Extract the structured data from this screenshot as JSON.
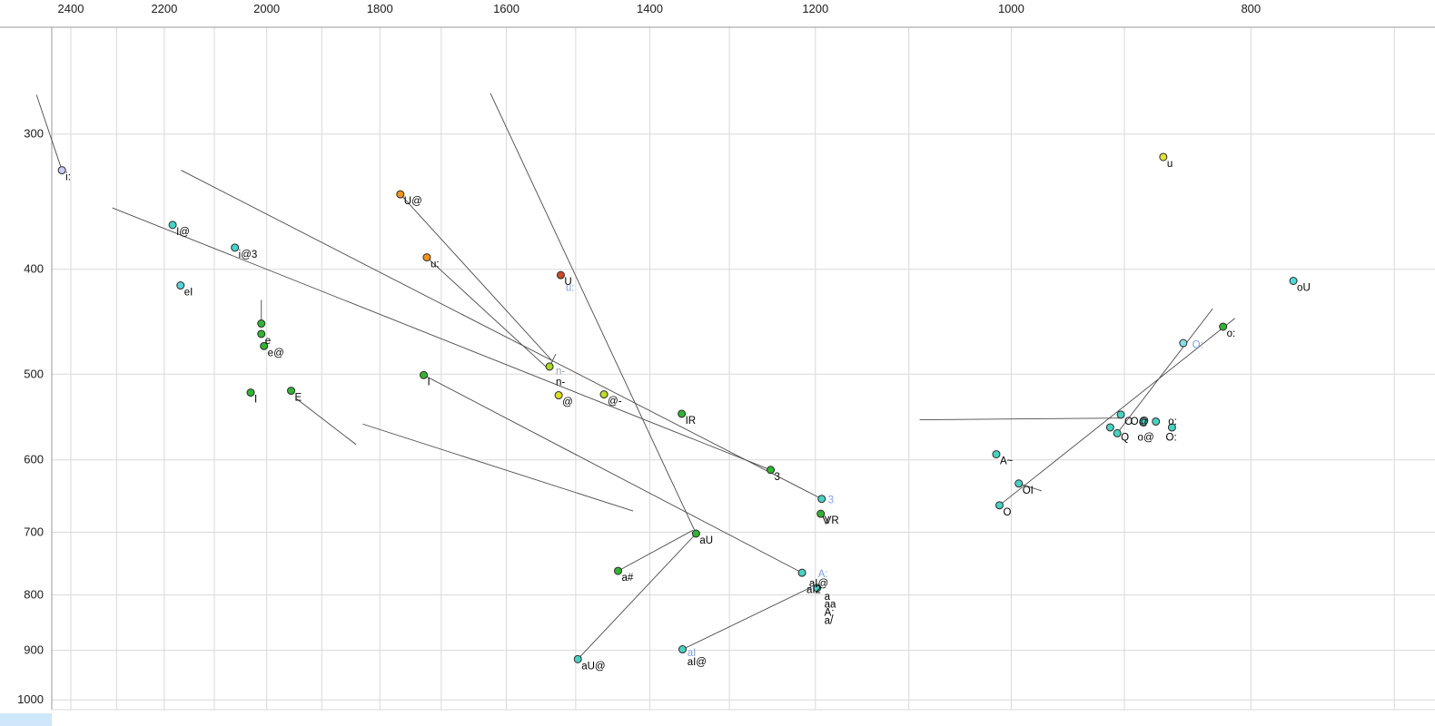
{
  "chart_data": {
    "type": "scatter",
    "title": "",
    "description": "Vowel formant plot (F2 horizontal reversed log scale, F1 vertical log scale) with diphthong trajectory lines",
    "x_ticks": [
      2400,
      2200,
      2000,
      1800,
      1600,
      1400,
      1200,
      1000,
      800
    ],
    "y_ticks": [
      300,
      400,
      500,
      600,
      700,
      800,
      900,
      1000
    ],
    "x_domain": [
      2443,
      674
    ],
    "y_domain": [
      239,
      1021
    ],
    "x_scale": "log-reversed",
    "y_scale": "log-descending",
    "grid": true,
    "grid_step": 100,
    "x_grid_range": [
      2400,
      700
    ],
    "y_grid_range": [
      300,
      1000
    ],
    "figure": {
      "background": "#ffffff",
      "grid_color": "#d9d9d9",
      "axis_color": "#9a9a9a",
      "line_color": "#4a4a4a",
      "tick_color": "#1a1a1a",
      "point_stroke": "#2a2a2a",
      "point_radius": 4
    },
    "points": [
      {
        "label": "i:",
        "f2": 2420,
        "f1": 324,
        "fill": "#c9cdf0"
      },
      {
        "label": "I@",
        "f2": 2183,
        "f1": 364,
        "fill": "#45d4c8"
      },
      {
        "label": "i@3",
        "f2": 2060,
        "f1": 382,
        "fill": "#45d4c8"
      },
      {
        "label": "eI",
        "f2": 2167,
        "f1": 414,
        "fill": "#5ad0dc"
      },
      {
        "label": "U@",
        "f2": 1766,
        "f1": 341,
        "fill": "#f2941e"
      },
      {
        "label": "u:",
        "f2": 1723,
        "f1": 390,
        "fill": "#f2941e"
      },
      {
        "label": "U",
        "f2": 1521,
        "f1": 405,
        "fill": "#cc4a2e"
      },
      {
        "label": "u",
        "f2": 868,
        "f1": 315,
        "fill": "#e2e23c"
      },
      {
        "label": "oU",
        "f2": 769,
        "f1": 410,
        "fill": "#52d8d8"
      },
      {
        "label": "o:",
        "f2": 821,
        "f1": 452,
        "fill": "#32b432"
      },
      {
        "label": "",
        "f2": 852,
        "f1": 468,
        "fill": "#8adce8"
      },
      {
        "label": "O",
        "f2": 903,
        "f1": 545,
        "fill": "#48d2c2"
      },
      {
        "label": "",
        "f2": 912,
        "f1": 560,
        "fill": "#48d2c2"
      },
      {
        "label": "",
        "f2": 906,
        "f1": 567,
        "fill": "#48d2c2"
      },
      {
        "label": "",
        "f2": 884,
        "f1": 553,
        "fill": "#48d2c2"
      },
      {
        "label": "",
        "f2": 874,
        "f1": 553,
        "fill": "#48d2c2"
      },
      {
        "label": "",
        "f2": 861,
        "f1": 560,
        "fill": "#48d2c2"
      },
      {
        "label": "A~",
        "f2": 1014,
        "f1": 593,
        "fill": "#48d2c2"
      },
      {
        "label": "OI",
        "f2": 993,
        "f1": 631,
        "fill": "#48d2c2"
      },
      {
        "label": "O",
        "f2": 1011,
        "f1": 661,
        "fill": "#48d2c2"
      },
      {
        "label": "3",
        "f2": 1251,
        "f1": 613,
        "fill": "#32b432"
      },
      {
        "label": "",
        "f2": 1193,
        "f1": 652,
        "fill": "#48d2c2"
      },
      {
        "label": "VR",
        "f2": 1194,
        "f1": 673,
        "fill": "#32b432"
      },
      {
        "label": "aU",
        "f2": 1341,
        "f1": 702,
        "fill": "#32b432"
      },
      {
        "label": "a#",
        "f2": 1442,
        "f1": 760,
        "fill": "#32b432"
      },
      {
        "label": "",
        "f2": 1215,
        "f1": 763,
        "fill": "#48d2c2"
      },
      {
        "label": "",
        "f2": 1198,
        "f1": 788,
        "fill": "#48d2c2"
      },
      {
        "label": "aU@",
        "f2": 1497,
        "f1": 917,
        "fill": "#48d2c2"
      },
      {
        "label": "",
        "f2": 1358,
        "f1": 898,
        "fill": "#48d2c2"
      },
      {
        "label": "E",
        "f2": 1955,
        "f1": 518,
        "fill": "#32b432"
      },
      {
        "label": "I",
        "f2": 2030,
        "f1": 520,
        "fill": "#32b432"
      },
      {
        "label": "",
        "f2": 2010,
        "f1": 449,
        "fill": "#32b432"
      },
      {
        "label": "e",
        "f2": 2010,
        "f1": 459,
        "fill": "#32b432"
      },
      {
        "label": "e@",
        "f2": 2005,
        "f1": 471,
        "fill": "#32b432"
      },
      {
        "label": "I",
        "f2": 1728,
        "f1": 501,
        "fill": "#32b432"
      },
      {
        "label": "",
        "f2": 1537,
        "f1": 492,
        "fill": "#a6d81e"
      },
      {
        "label": "@",
        "f2": 1524,
        "f1": 523,
        "fill": "#dede1e"
      },
      {
        "label": "@-",
        "f2": 1461,
        "f1": 522,
        "fill": "#bcdc28"
      },
      {
        "label": "IR",
        "f2": 1359,
        "f1": 544,
        "fill": "#32b432"
      }
    ],
    "annotations": [
      {
        "text": "u:",
        "f2": 1514,
        "f1": 419,
        "color": "#7f9fdf"
      },
      {
        "text": "O:",
        "f2": 845,
        "f1": 473,
        "color": "#7f9fdf"
      },
      {
        "text": "O@",
        "f2": 895,
        "f1": 557,
        "color": "#000000"
      },
      {
        "text": "o:",
        "f2": 864,
        "f1": 557,
        "color": "#000000"
      },
      {
        "text": "Q",
        "f2": 903,
        "f1": 576,
        "color": "#000000"
      },
      {
        "text": "o@",
        "f2": 889,
        "f1": 576,
        "color": "#000000"
      },
      {
        "text": "O:",
        "f2": 866,
        "f1": 576,
        "color": "#000000"
      },
      {
        "text": "3",
        "f2": 1186,
        "f1": 658,
        "color": "#7f9fdf"
      },
      {
        "text": "V",
        "f2": 1192,
        "f1": 688,
        "color": "#000000"
      },
      {
        "text": "A:",
        "f2": 1197,
        "f1": 770,
        "color": "#7f9fdf"
      },
      {
        "text": "aI@",
        "f2": 1207,
        "f1": 786,
        "color": "#000000"
      },
      {
        "text": "aI2",
        "f2": 1210,
        "f1": 797,
        "color": "#000000"
      },
      {
        "text": "a",
        "f2": 1190,
        "f1": 808,
        "color": "#000000"
      },
      {
        "text": "aa",
        "f2": 1190,
        "f1": 822,
        "color": "#000000"
      },
      {
        "text": "A:",
        "f2": 1190,
        "f1": 836,
        "color": "#000000"
      },
      {
        "text": "a/",
        "f2": 1190,
        "f1": 851,
        "color": "#000000"
      },
      {
        "text": "aI",
        "f2": 1352,
        "f1": 911,
        "color": "#7f9fdf"
      },
      {
        "text": "aI@",
        "f2": 1352,
        "f1": 929,
        "color": "#000000"
      },
      {
        "text": "n-",
        "f2": 1528,
        "f1": 500,
        "color": "#9aa0a6"
      },
      {
        "text": "n-",
        "f2": 1528,
        "f1": 512,
        "color": "#000000"
      }
    ],
    "lines": [
      [
        2478,
        276,
        2420,
        324
      ],
      [
        2309,
        351,
        1251,
        613
      ],
      [
        2166,
        324,
        1193,
        652
      ],
      [
        1766,
        341,
        1532,
        487
      ],
      [
        1723,
        390,
        1541,
        493
      ],
      [
        1624,
        275,
        1341,
        702
      ],
      [
        2010,
        427,
        2010,
        449
      ],
      [
        1528,
        479,
        1537,
        492
      ],
      [
        1945,
        527,
        1840,
        581
      ],
      [
        1728,
        501,
        1215,
        763
      ],
      [
        1358,
        898,
        1205,
        787
      ],
      [
        1497,
        917,
        1341,
        702
      ],
      [
        1442,
        760,
        1345,
        697
      ],
      [
        1089,
        551,
        903,
        549
      ],
      [
        829,
        435,
        904,
        563
      ],
      [
        812,
        444,
        1011,
        661
      ],
      [
        993,
        631,
        972,
        641
      ],
      [
        1829,
        556,
        1422,
        669
      ]
    ]
  }
}
